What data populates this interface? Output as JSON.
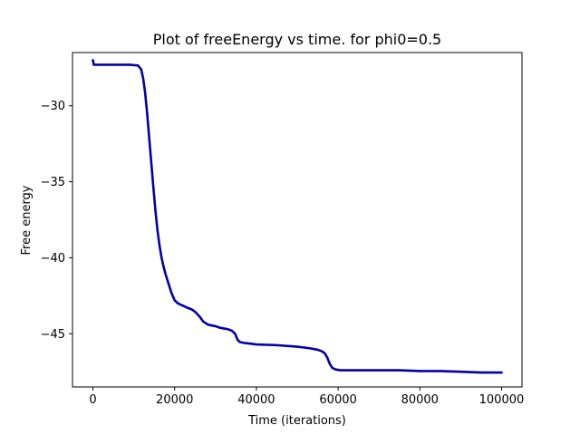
{
  "chart_data": {
    "type": "line",
    "title": "Plot of freeEnergy vs time. for phi0=0.5",
    "xlabel": "Time (iterations)",
    "ylabel": "Free energy",
    "xlim": [
      -5000,
      105000
    ],
    "ylim": [
      -48.5,
      -26.5
    ],
    "x_ticks": [
      0,
      20000,
      40000,
      60000,
      80000,
      100000
    ],
    "x_tick_labels": [
      "0",
      "20000",
      "40000",
      "60000",
      "80000",
      "100000"
    ],
    "y_ticks": [
      -30,
      -35,
      -40,
      -45
    ],
    "y_tick_labels": [
      "−30",
      "−35",
      "−40",
      "−45"
    ],
    "grid": false,
    "legend": false,
    "series": [
      {
        "color": "#00008b",
        "line_color_overlay": "#0000cd",
        "x": [
          0,
          200,
          500,
          1000,
          3000,
          6000,
          9000,
          11000,
          11800,
          12300,
          12800,
          13300,
          13800,
          14300,
          14800,
          15300,
          15800,
          16300,
          16800,
          17300,
          17800,
          18500,
          19200,
          20000,
          20800,
          21600,
          22400,
          23200,
          24200,
          25200,
          26200,
          27000,
          27600,
          28200,
          29000,
          30000,
          31000,
          32000,
          33000,
          34000,
          34800,
          35400,
          36000,
          37000,
          38500,
          40000,
          45000,
          50000,
          53000,
          55000,
          56000,
          56800,
          57400,
          58000,
          58600,
          59400,
          60500,
          62000,
          65000,
          70000,
          75000,
          80000,
          85000,
          90000,
          95000,
          100000
        ],
        "y": [
          -27.0,
          -27.3,
          -27.3,
          -27.3,
          -27.3,
          -27.3,
          -27.3,
          -27.35,
          -27.6,
          -28.2,
          -29.2,
          -30.6,
          -32.2,
          -33.8,
          -35.4,
          -36.9,
          -38.2,
          -39.2,
          -40.0,
          -40.6,
          -41.1,
          -41.7,
          -42.3,
          -42.8,
          -43.0,
          -43.1,
          -43.2,
          -43.3,
          -43.4,
          -43.6,
          -43.9,
          -44.2,
          -44.3,
          -44.4,
          -44.45,
          -44.5,
          -44.6,
          -44.65,
          -44.7,
          -44.8,
          -45.0,
          -45.4,
          -45.55,
          -45.6,
          -45.65,
          -45.7,
          -45.75,
          -45.85,
          -45.95,
          -46.05,
          -46.15,
          -46.3,
          -46.6,
          -47.0,
          -47.25,
          -47.35,
          -47.4,
          -47.4,
          -47.4,
          -47.4,
          -47.4,
          -47.45,
          -47.45,
          -47.5,
          -47.55,
          -47.55
        ]
      }
    ]
  }
}
